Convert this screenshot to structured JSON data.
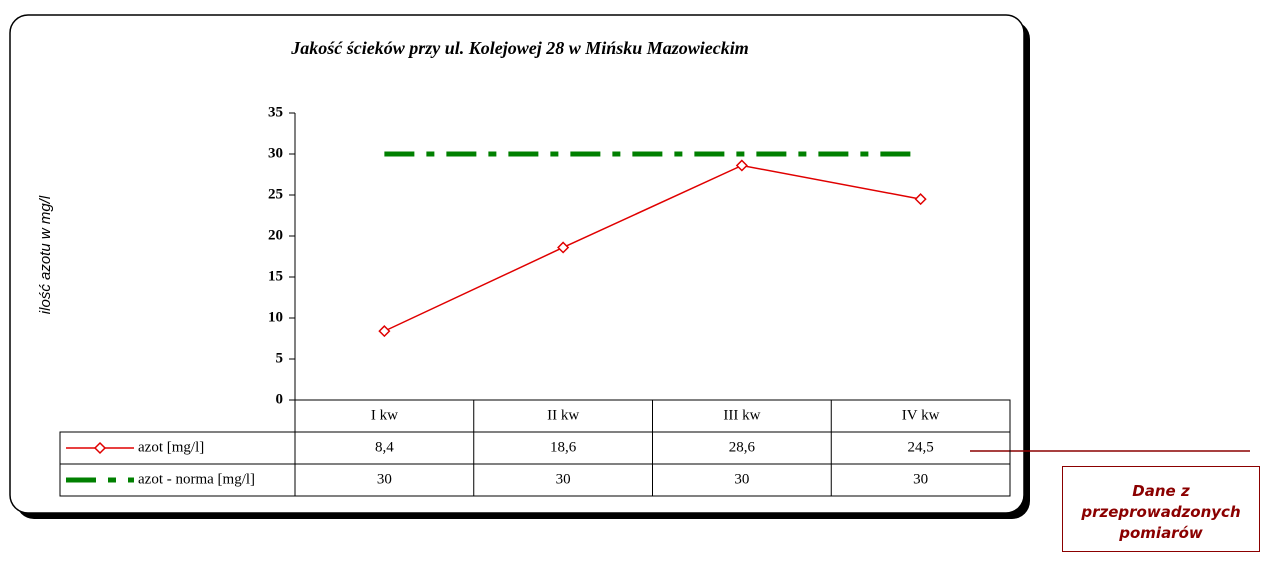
{
  "chart_data": {
    "type": "line",
    "title": "Jakość ścieków przy ul. Kolejowej 28 w Mińsku Mazowieckim",
    "y_label": "ilość azotu w mg/l",
    "categories": [
      "I kw",
      "II kw",
      "III kw",
      "IV kw"
    ],
    "series": [
      {
        "name": "azot [mg/l]",
        "color": "#e00000",
        "values": [
          8.4,
          18.6,
          28.6,
          24.5
        ],
        "value_labels": [
          "8,4",
          "18,6",
          "28,6",
          "24,5"
        ]
      },
      {
        "name": "azot - norma [mg/l]",
        "color": "#008000",
        "values": [
          30,
          30,
          30,
          30
        ]
      }
    ],
    "ylim": [
      0,
      35
    ],
    "yticks": [
      0,
      5,
      10,
      15,
      20,
      25,
      30,
      35
    ],
    "annotation": "Dane z przeprowadzonych pomiarów"
  }
}
